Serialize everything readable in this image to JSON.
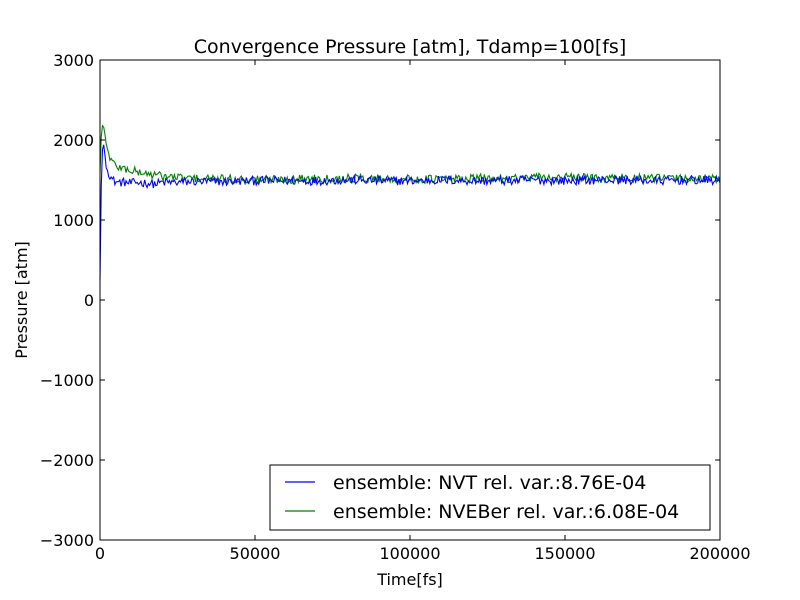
{
  "chart_data": {
    "type": "line",
    "title": "Convergence Pressure [atm], Tdamp=100[fs]",
    "xlabel": "Time[fs]",
    "ylabel": "Pressure [atm]",
    "xlim": [
      0,
      200000
    ],
    "ylim": [
      -3000,
      3000
    ],
    "xticks": [
      0,
      50000,
      100000,
      150000,
      200000
    ],
    "yticks": [
      -3000,
      -2000,
      -1000,
      0,
      1000,
      2000,
      3000
    ],
    "xtick_labels": [
      "0",
      "50000",
      "100000",
      "150000",
      "200000"
    ],
    "ytick_labels": [
      "−3000",
      "−2000",
      "−1000",
      "0",
      "1000",
      "2000",
      "3000"
    ],
    "grid": false,
    "legend_position": "lower-right",
    "series": [
      {
        "name": "ensemble: NVT rel. var.:8.76E-04",
        "color": "#0000ff",
        "x": [
          0,
          500,
          1000,
          1500,
          2000,
          3000,
          4000,
          5000,
          6000,
          8000,
          10000,
          12000,
          15000,
          18000,
          20000,
          25000,
          30000,
          40000,
          50000,
          60000,
          70000,
          80000,
          90000,
          100000,
          110000,
          120000,
          130000,
          140000,
          150000,
          160000,
          170000,
          180000,
          190000,
          200000
        ],
        "y": [
          250,
          1700,
          2000,
          1850,
          1650,
          1580,
          1500,
          1480,
          1470,
          1470,
          1460,
          1470,
          1460,
          1450,
          1470,
          1470,
          1480,
          1480,
          1490,
          1490,
          1490,
          1500,
          1490,
          1490,
          1500,
          1490,
          1490,
          1500,
          1490,
          1500,
          1500,
          1490,
          1500,
          1490
        ]
      },
      {
        "name": "ensemble: NVEBer rel. var.:6.08E-04",
        "color": "#008000",
        "x": [
          0,
          500,
          1000,
          1500,
          2000,
          3000,
          4000,
          5000,
          6000,
          8000,
          10000,
          12000,
          15000,
          18000,
          20000,
          25000,
          30000,
          40000,
          50000,
          60000,
          70000,
          80000,
          90000,
          100000,
          110000,
          120000,
          130000,
          140000,
          150000,
          160000,
          170000,
          180000,
          190000,
          200000
        ],
        "y": [
          1600,
          2150,
          2200,
          2100,
          1950,
          1800,
          1720,
          1690,
          1660,
          1640,
          1620,
          1600,
          1580,
          1560,
          1550,
          1530,
          1520,
          1510,
          1510,
          1510,
          1520,
          1520,
          1520,
          1510,
          1510,
          1520,
          1520,
          1530,
          1530,
          1530,
          1520,
          1520,
          1520,
          1510
        ]
      }
    ]
  }
}
